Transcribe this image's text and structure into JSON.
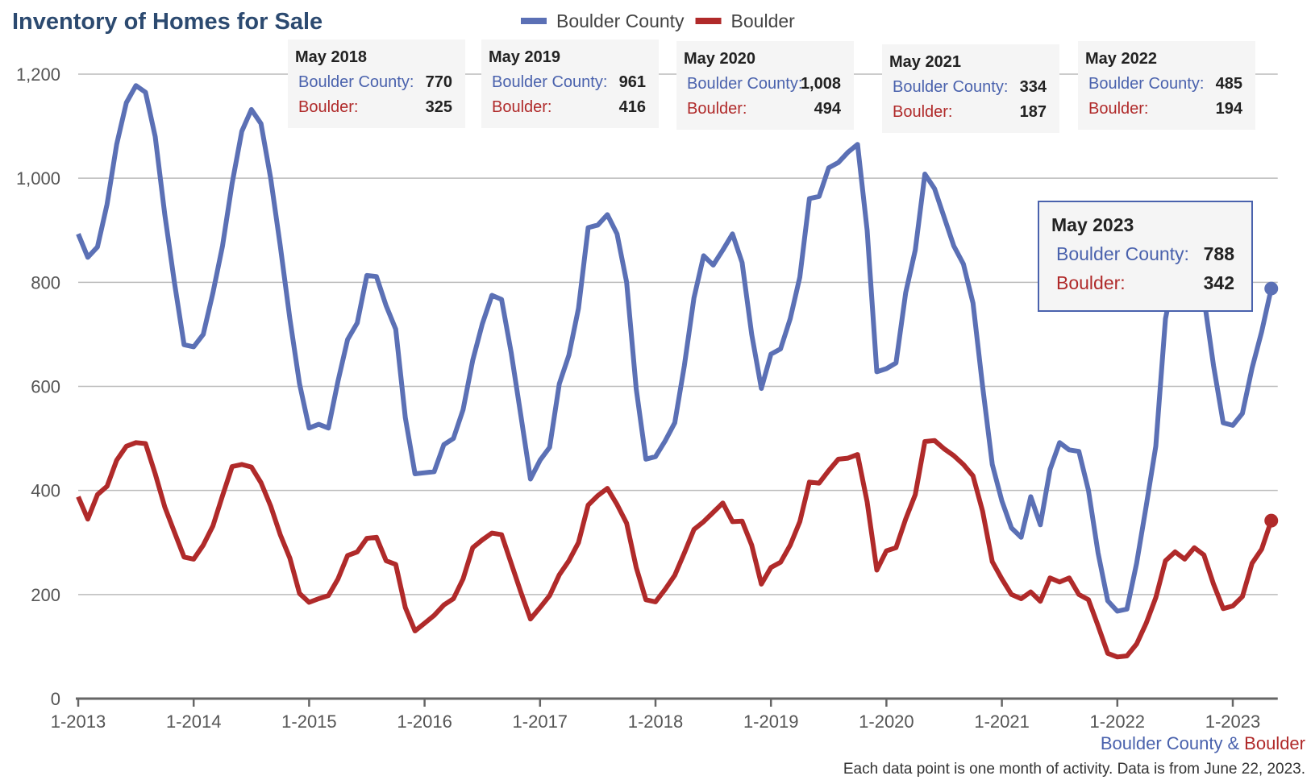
{
  "chart_data": {
    "type": "line",
    "title": "Inventory of Homes for Sale",
    "categories": [
      "1-2013",
      null,
      null,
      null,
      null,
      null,
      null,
      null,
      null,
      null,
      null,
      null,
      "1-2014",
      null,
      null,
      null,
      null,
      null,
      null,
      null,
      null,
      null,
      null,
      null,
      "1-2015",
      null,
      null,
      null,
      null,
      null,
      null,
      null,
      null,
      null,
      null,
      null,
      "1-2016",
      null,
      null,
      null,
      null,
      null,
      null,
      null,
      null,
      null,
      null,
      null,
      "1-2017",
      null,
      null,
      null,
      null,
      null,
      null,
      null,
      null,
      null,
      null,
      null,
      "1-2018",
      null,
      null,
      null,
      null,
      null,
      null,
      null,
      null,
      null,
      null,
      null,
      "1-2019",
      null,
      null,
      null,
      null,
      null,
      null,
      null,
      null,
      null,
      null,
      null,
      "1-2020",
      null,
      null,
      null,
      null,
      null,
      null,
      null,
      null,
      null,
      null,
      null,
      "1-2021",
      null,
      null,
      null,
      null,
      null,
      null,
      null,
      null,
      null,
      null,
      null,
      "1-2022",
      null,
      null,
      null,
      null,
      null,
      null,
      null,
      null,
      null,
      null,
      null,
      "1-2023",
      null,
      null,
      null,
      null
    ],
    "series": [
      {
        "name": "Boulder County",
        "color": "#5b70b5",
        "values": [
          893,
          848,
          868,
          950,
          1065,
          1145,
          1178,
          1165,
          1080,
          930,
          800,
          680,
          676,
          700,
          780,
          870,
          990,
          1090,
          1132,
          1105,
          1000,
          870,
          730,
          605,
          520,
          527,
          520,
          610,
          690,
          722,
          813,
          811,
          755,
          710,
          540,
          432,
          434,
          436,
          488,
          500,
          555,
          650,
          720,
          775,
          767,
          665,
          545,
          422,
          458,
          483,
          605,
          660,
          750,
          905,
          910,
          930,
          893,
          800,
          595,
          460,
          465,
          495,
          530,
          640,
          770,
          851,
          833,
          862,
          893,
          838,
          700,
          596,
          662,
          672,
          730,
          810,
          961,
          965,
          1020,
          1030,
          1050,
          1065,
          900,
          628,
          634,
          645,
          780,
          862,
          1008,
          980,
          925,
          870,
          835,
          760,
          600,
          450,
          380,
          328,
          310,
          388,
          334,
          440,
          492,
          478,
          475,
          400,
          280,
          188,
          168,
          172,
          260,
          370,
          485,
          730,
          820,
          840,
          820,
          770,
          640,
          530,
          525,
          548,
          635,
          705,
          788
        ]
      },
      {
        "name": "Boulder",
        "color": "#b02a2a",
        "values": [
          388,
          345,
          392,
          408,
          458,
          485,
          492,
          490,
          432,
          368,
          320,
          272,
          268,
          295,
          332,
          390,
          446,
          450,
          445,
          415,
          370,
          315,
          270,
          202,
          185,
          192,
          198,
          230,
          275,
          282,
          308,
          310,
          265,
          258,
          175,
          130,
          145,
          160,
          180,
          192,
          230,
          290,
          305,
          318,
          315,
          260,
          205,
          153,
          175,
          198,
          238,
          265,
          300,
          372,
          390,
          404,
          373,
          337,
          252,
          190,
          186,
          210,
          237,
          280,
          325,
          340,
          358,
          376,
          340,
          341,
          295,
          220,
          252,
          262,
          295,
          340,
          416,
          414,
          438,
          460,
          462,
          469,
          378,
          247,
          284,
          290,
          345,
          392,
          494,
          496,
          480,
          467,
          450,
          428,
          360,
          263,
          230,
          200,
          192,
          205,
          187,
          232,
          224,
          232,
          200,
          190,
          140,
          87,
          80,
          82,
          105,
          145,
          194,
          265,
          282,
          268,
          290,
          276,
          220,
          173,
          178,
          196,
          260,
          287,
          342
        ]
      }
    ],
    "ylim": [
      0,
      1200
    ],
    "yticks": [
      0,
      200,
      400,
      600,
      800,
      {
        "value": 1000,
        "label": "1,000"
      },
      {
        "value": 1200,
        "label": "1,200"
      }
    ],
    "grid": true,
    "annotations": [
      {
        "title": "May 2018",
        "lines": [
          {
            "label": "Boulder County:",
            "value": "770"
          },
          {
            "label": "Boulder:",
            "value": "325"
          }
        ]
      },
      {
        "title": "May 2019",
        "lines": [
          {
            "label": "Boulder County:",
            "value": "961"
          },
          {
            "label": "Boulder:",
            "value": "416"
          }
        ]
      },
      {
        "title": "May 2020",
        "lines": [
          {
            "label": "Boulder County:",
            "value": "1,008"
          },
          {
            "label": "Boulder:",
            "value": "494"
          }
        ]
      },
      {
        "title": "May 2021",
        "lines": [
          {
            "label": "Boulder County:",
            "value": "334"
          },
          {
            "label": "Boulder:",
            "value": "187"
          }
        ]
      },
      {
        "title": "May 2022",
        "lines": [
          {
            "label": "Boulder County:",
            "value": "485"
          },
          {
            "label": "Boulder:",
            "value": "194"
          }
        ]
      },
      {
        "title": "May 2023",
        "lines": [
          {
            "label": "Boulder County:",
            "value": "788"
          },
          {
            "label": "Boulder:",
            "value": "342"
          }
        ]
      }
    ],
    "footer_left": "Boulder County",
    "footer_sep": "&",
    "footer_right": "Boulder",
    "note": "Each data point is one month of activity. Data is from June 22, 2023."
  }
}
